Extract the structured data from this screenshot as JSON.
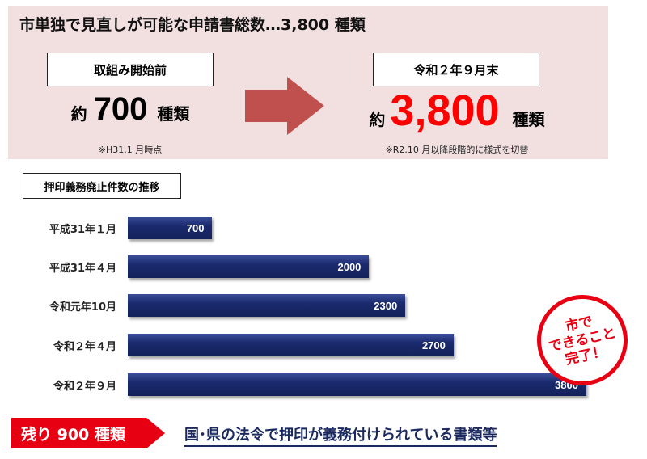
{
  "header": {
    "title": "市単独で見直しが可能な申請書総数…3,800 種類",
    "before": {
      "label": "取組み開始前",
      "prefix": "約",
      "value": "700",
      "unit": "種類",
      "note": "※H31.1 月時点"
    },
    "after": {
      "label": "令和２年９月末",
      "prefix": "約",
      "value": "3,800",
      "unit": "種類",
      "note": "※R2.10 月以降段階的に様式を切替"
    },
    "arrow_icon": "right-arrow",
    "accent": "#e60012",
    "arrow_color": "#c0504d"
  },
  "chart_data": {
    "type": "bar",
    "orientation": "horizontal",
    "title": "押印義務廃止件数の推移",
    "categories": [
      "平成31年１月",
      "平成31年４月",
      "令和元年10月",
      "令和２年４月",
      "令和２年９月"
    ],
    "values": [
      700,
      2000,
      2300,
      2700,
      3800
    ],
    "data_labels": [
      "700",
      "2000",
      "2300",
      "2700",
      "3800"
    ],
    "bar_color": "#1b2a6e"
  },
  "stamp": {
    "lines": [
      "市で",
      "できること",
      "完了！"
    ]
  },
  "footer": {
    "remaining": "残り 900 種類",
    "description": "国･県の法令で押印が義務付けられている書類等"
  }
}
